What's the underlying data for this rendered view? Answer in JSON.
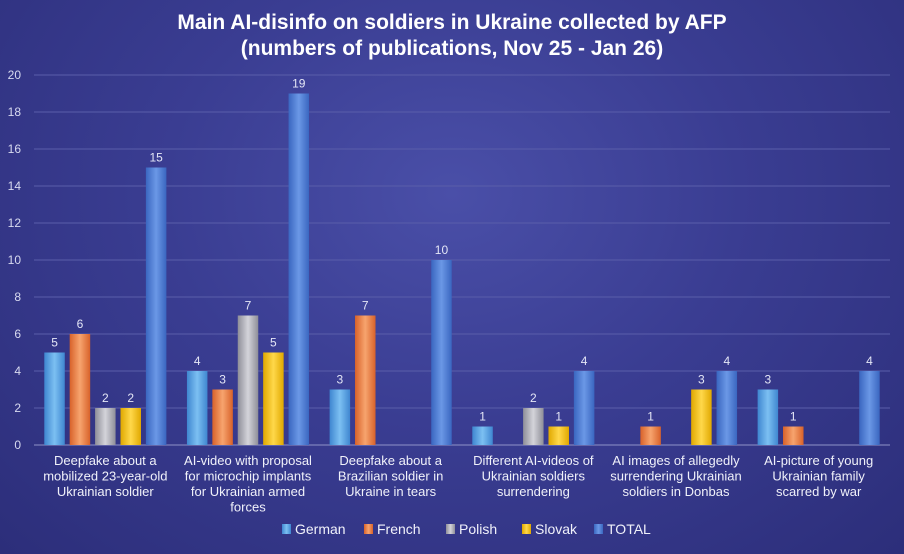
{
  "chart_data": {
    "type": "bar",
    "title_lines": [
      "Main AI-disinfo on soldiers in Ukraine collected by AFP",
      "(numbers of publications, Nov 25 - Jan 26)"
    ],
    "categories": [
      "Deepfake about a mobilized 23-year-old Ukrainian soldier",
      "AI-video with proposal for microchip implants for Ukrainian armed forces",
      "Deepfake about a Brazilian soldier in Ukraine in tears",
      "Different AI-videos of Ukrainian soldiers surrendering",
      "AI images of allegedly surrendering Ukrainian soldiers in Donbas",
      "AI-picture of young Ukrainian family scarred by war"
    ],
    "category_lines": [
      [
        "Deepfake about a",
        "mobilized 23-year-old",
        "Ukrainian soldier"
      ],
      [
        "AI-video with proposal",
        "for microchip implants",
        "for Ukrainian armed",
        "forces"
      ],
      [
        "Deepfake about a",
        "Brazilian soldier in",
        "Ukraine in tears"
      ],
      [
        "Different AI-videos of",
        "Ukrainian soldiers",
        "surrendering"
      ],
      [
        "AI images of allegedly",
        "surrendering Ukrainian",
        "soldiers in Donbas"
      ],
      [
        "AI-picture of young",
        "Ukrainian family",
        "scarred by war"
      ]
    ],
    "series": [
      {
        "name": "German",
        "color": "#5aa8e8",
        "values": [
          5,
          4,
          3,
          1,
          null,
          3
        ]
      },
      {
        "name": "French",
        "color": "#ee8040",
        "values": [
          6,
          3,
          7,
          null,
          1,
          1
        ]
      },
      {
        "name": "Polish",
        "color": "#b8b8c0",
        "values": [
          2,
          7,
          null,
          2,
          null,
          null
        ]
      },
      {
        "name": "Slovak",
        "color": "#f5c518",
        "values": [
          2,
          5,
          null,
          1,
          3,
          null
        ]
      },
      {
        "name": "TOTAL",
        "color": "#4f7ed6",
        "values": [
          15,
          19,
          10,
          4,
          4,
          4
        ]
      }
    ],
    "ylim": [
      0,
      20
    ],
    "yticks": [
      0,
      2,
      4,
      6,
      8,
      10,
      12,
      14,
      16,
      18,
      20
    ],
    "grid": true,
    "legend_position": "bottom"
  }
}
